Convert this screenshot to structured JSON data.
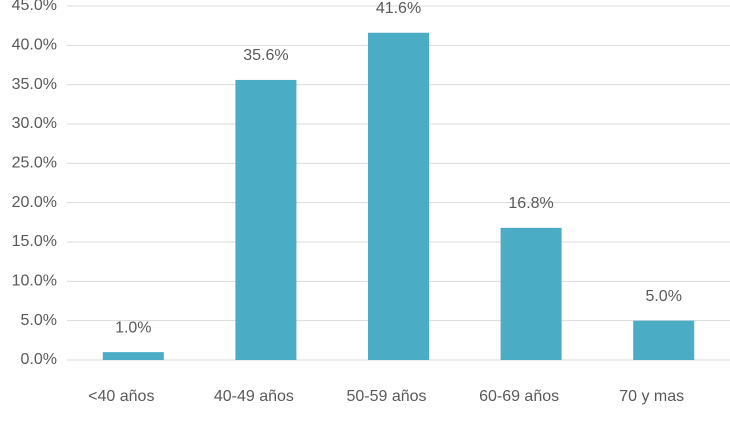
{
  "chart_data": {
    "type": "bar",
    "categories": [
      "<40 años",
      "40-49 años",
      "50-59 años",
      "60-69 años",
      "70 y mas"
    ],
    "values": [
      1.0,
      35.6,
      41.6,
      16.8,
      5.0
    ],
    "value_labels": [
      "1.0%",
      "35.6%",
      "41.6%",
      "16.8%",
      "5.0%"
    ],
    "color": "#4bacc6",
    "ylim": [
      0,
      45
    ],
    "yticks": [
      {
        "value": 0,
        "label": "0.0%"
      },
      {
        "value": 5,
        "label": "5.0%"
      },
      {
        "value": 10,
        "label": "10.0%"
      },
      {
        "value": 15,
        "label": "15.0%"
      },
      {
        "value": 20,
        "label": "20.0%"
      },
      {
        "value": 25,
        "label": "25.0%"
      },
      {
        "value": 30,
        "label": "30.0%"
      },
      {
        "value": 35,
        "label": "35.0%"
      },
      {
        "value": 40,
        "label": "40.0%"
      },
      {
        "value": 45,
        "label": "45.0%"
      }
    ],
    "grid": true
  }
}
